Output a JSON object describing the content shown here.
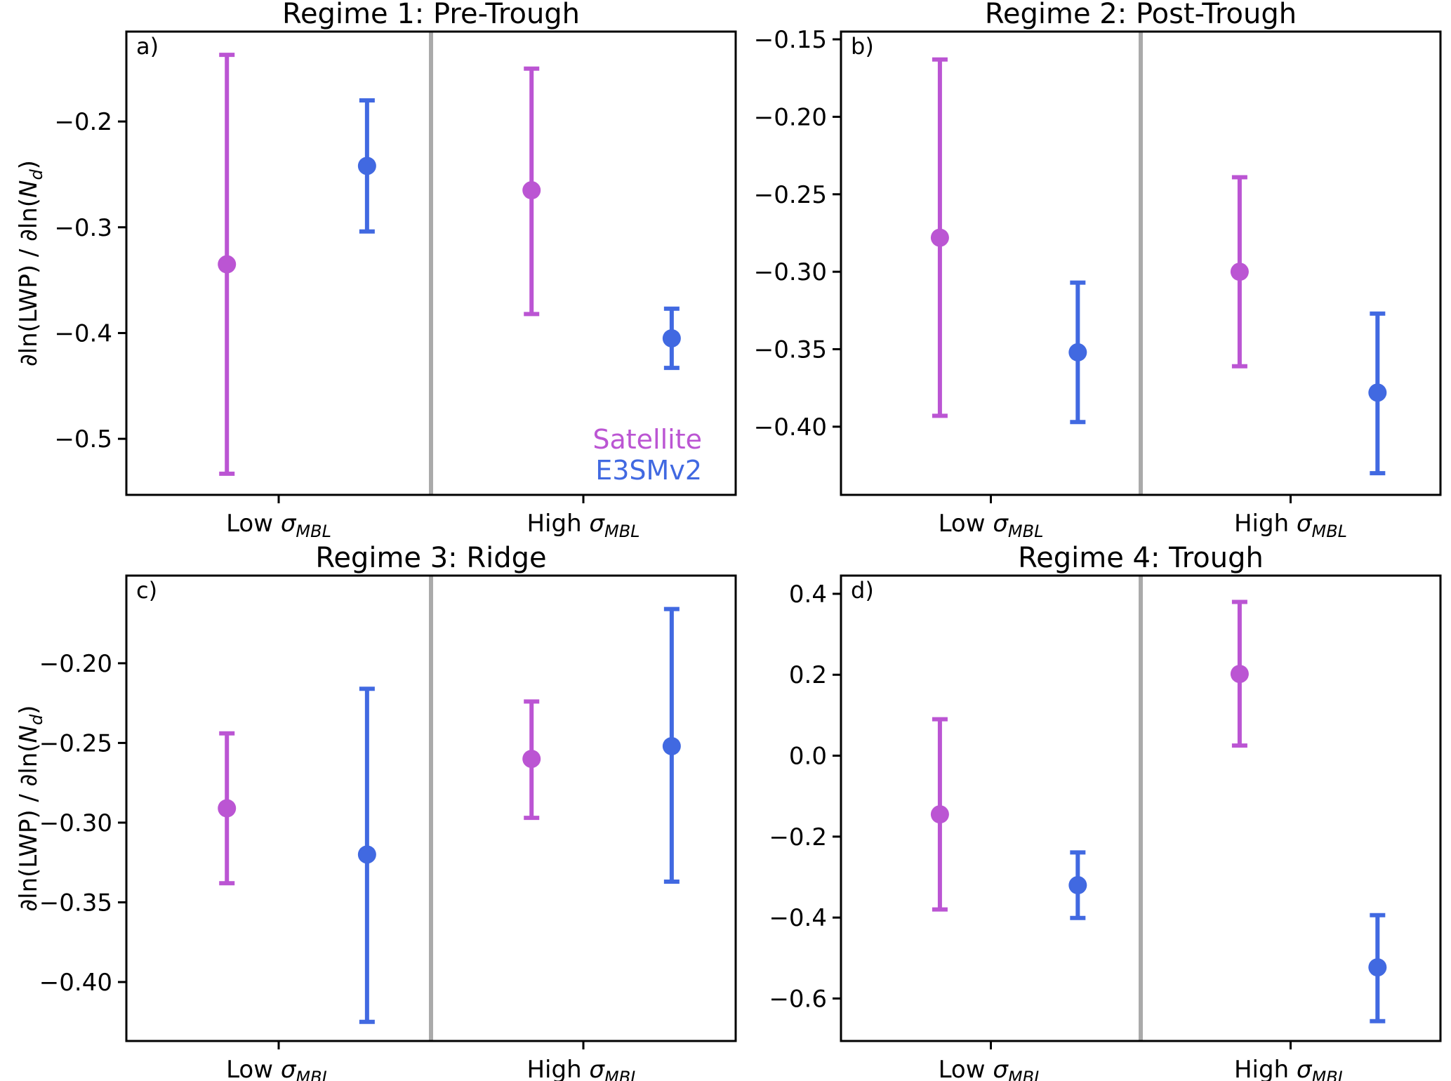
{
  "colors": {
    "satellite": "#bb55d3",
    "e3smv2": "#4169e1",
    "divider": "#aaaaaa"
  },
  "legend": {
    "satellite": "Satellite",
    "e3smv2": "E3SMv2"
  },
  "chart_data": [
    {
      "type": "errorbar",
      "panel": "a)",
      "title": "Regime 1: Pre-Trough",
      "ylabel_pre": "∂ln(LWP) / ∂ln(",
      "ylabel_var": "N",
      "ylabel_sub": "d",
      "ylabel_post": ")",
      "ylim": [
        -0.553,
        -0.115
      ],
      "yticks": [
        -0.2,
        -0.3,
        -0.4,
        -0.5
      ],
      "ytick_labels": [
        "−0.2",
        "−0.3",
        "−0.4",
        "−0.5"
      ],
      "categories": [
        {
          "label": "Low ",
          "sym": "σ",
          "sub": "MBL"
        },
        {
          "label": "High ",
          "sym": "σ",
          "sub": "MBL"
        }
      ],
      "series": [
        {
          "name": "Satellite",
          "values": [
            -0.335,
            -0.265
          ],
          "lower": [
            -0.533,
            -0.382
          ],
          "upper": [
            -0.137,
            -0.15
          ]
        },
        {
          "name": "E3SMv2",
          "values": [
            -0.242,
            -0.405
          ],
          "lower": [
            -0.304,
            -0.433
          ],
          "upper": [
            -0.18,
            -0.377
          ]
        }
      ],
      "legend": true
    },
    {
      "type": "errorbar",
      "panel": "b)",
      "title": "Regime 2: Post-Trough",
      "ylim": [
        -0.444,
        -0.145
      ],
      "yticks": [
        -0.15,
        -0.2,
        -0.25,
        -0.3,
        -0.35,
        -0.4
      ],
      "ytick_labels": [
        "−0.15",
        "−0.20",
        "−0.25",
        "−0.30",
        "−0.35",
        "−0.40"
      ],
      "categories": [
        {
          "label": "Low ",
          "sym": "σ",
          "sub": "MBL"
        },
        {
          "label": "High ",
          "sym": "σ",
          "sub": "MBL"
        }
      ],
      "series": [
        {
          "name": "Satellite",
          "values": [
            -0.278,
            -0.3
          ],
          "lower": [
            -0.393,
            -0.361
          ],
          "upper": [
            -0.163,
            -0.239
          ]
        },
        {
          "name": "E3SMv2",
          "values": [
            -0.352,
            -0.378
          ],
          "lower": [
            -0.397,
            -0.43
          ],
          "upper": [
            -0.307,
            -0.327
          ]
        }
      ],
      "legend": false
    },
    {
      "type": "errorbar",
      "panel": "c)",
      "title": "Regime 3: Ridge",
      "ylabel_pre": "∂ln(LWP) / ∂ln(",
      "ylabel_var": "N",
      "ylabel_sub": "d",
      "ylabel_post": ")",
      "ylim": [
        -0.437,
        -0.145
      ],
      "yticks": [
        -0.2,
        -0.25,
        -0.3,
        -0.35,
        -0.4
      ],
      "ytick_labels": [
        "−0.20",
        "−0.25",
        "−0.30",
        "−0.35",
        "−0.40"
      ],
      "categories": [
        {
          "label": "Low ",
          "sym": "σ",
          "sub": "MBL"
        },
        {
          "label": "High ",
          "sym": "σ",
          "sub": "MBL"
        }
      ],
      "series": [
        {
          "name": "Satellite",
          "values": [
            -0.291,
            -0.26
          ],
          "lower": [
            -0.338,
            -0.297
          ],
          "upper": [
            -0.244,
            -0.224
          ]
        },
        {
          "name": "E3SMv2",
          "values": [
            -0.32,
            -0.252
          ],
          "lower": [
            -0.425,
            -0.337
          ],
          "upper": [
            -0.216,
            -0.166
          ]
        }
      ],
      "legend": false
    },
    {
      "type": "errorbar",
      "panel": "d)",
      "title": "Regime 4: Trough",
      "ylim": [
        -0.705,
        0.445
      ],
      "yticks": [
        0.4,
        0.2,
        0.0,
        -0.2,
        -0.4,
        -0.6
      ],
      "ytick_labels": [
        "0.4",
        "0.2",
        "0.0",
        "−0.2",
        "−0.4",
        "−0.6"
      ],
      "categories": [
        {
          "label": "Low ",
          "sym": "σ",
          "sub": "MBL"
        },
        {
          "label": "High ",
          "sym": "σ",
          "sub": "MBL"
        }
      ],
      "series": [
        {
          "name": "Satellite",
          "values": [
            -0.145,
            0.202
          ],
          "lower": [
            -0.38,
            0.025
          ],
          "upper": [
            0.09,
            0.38
          ]
        },
        {
          "name": "E3SMv2",
          "values": [
            -0.32,
            -0.523
          ],
          "lower": [
            -0.401,
            -0.656
          ],
          "upper": [
            -0.239,
            -0.394
          ]
        }
      ],
      "legend": false
    }
  ]
}
